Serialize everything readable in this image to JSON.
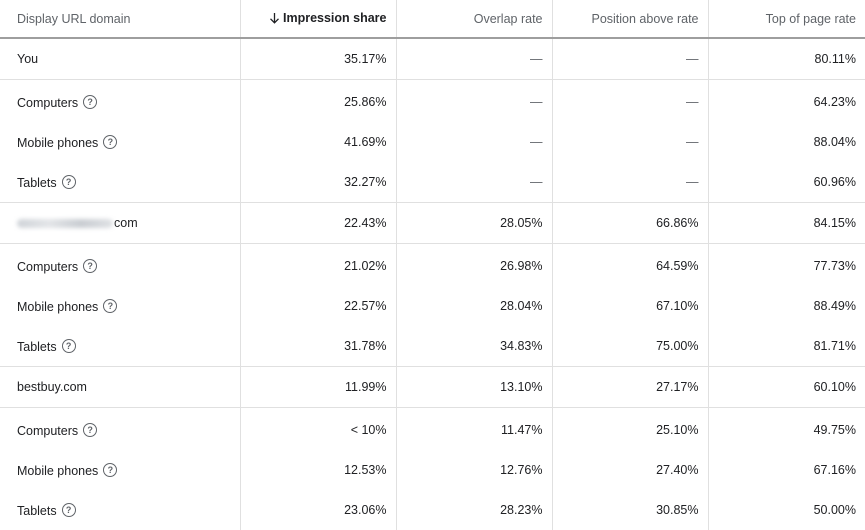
{
  "columns": [
    {
      "label": "Display URL domain",
      "sorted": false
    },
    {
      "label": "Impression share",
      "sorted": true
    },
    {
      "label": "Overlap rate",
      "sorted": false
    },
    {
      "label": "Position above rate",
      "sorted": false
    },
    {
      "label": "Top of page rate",
      "sorted": false
    }
  ],
  "rows": [
    {
      "type": "main",
      "domain": "You",
      "impression_share": "35.17%",
      "overlap_rate": "—",
      "position_above_rate": "—",
      "top_of_page_rate": "80.11%"
    },
    {
      "type": "sub",
      "domain": "Computers",
      "impression_share": "25.86%",
      "overlap_rate": "—",
      "position_above_rate": "—",
      "top_of_page_rate": "64.23%"
    },
    {
      "type": "sub",
      "domain": "Mobile phones",
      "impression_share": "41.69%",
      "overlap_rate": "—",
      "position_above_rate": "—",
      "top_of_page_rate": "88.04%"
    },
    {
      "type": "sub",
      "domain": "Tablets",
      "impression_share": "32.27%",
      "overlap_rate": "—",
      "position_above_rate": "—",
      "top_of_page_rate": "60.96%"
    },
    {
      "type": "main",
      "domain": "com",
      "blurred_prefix": true,
      "impression_share": "22.43%",
      "overlap_rate": "28.05%",
      "position_above_rate": "66.86%",
      "top_of_page_rate": "84.15%"
    },
    {
      "type": "sub",
      "domain": "Computers",
      "impression_share": "21.02%",
      "overlap_rate": "26.98%",
      "position_above_rate": "64.59%",
      "top_of_page_rate": "77.73%"
    },
    {
      "type": "sub",
      "domain": "Mobile phones",
      "impression_share": "22.57%",
      "overlap_rate": "28.04%",
      "position_above_rate": "67.10%",
      "top_of_page_rate": "88.49%"
    },
    {
      "type": "sub",
      "domain": "Tablets",
      "impression_share": "31.78%",
      "overlap_rate": "34.83%",
      "position_above_rate": "75.00%",
      "top_of_page_rate": "81.71%"
    },
    {
      "type": "main",
      "domain": "bestbuy.com",
      "impression_share": "11.99%",
      "overlap_rate": "13.10%",
      "position_above_rate": "27.17%",
      "top_of_page_rate": "60.10%"
    },
    {
      "type": "sub",
      "domain": "Computers",
      "impression_share": "< 10%",
      "overlap_rate": "11.47%",
      "position_above_rate": "25.10%",
      "top_of_page_rate": "49.75%"
    },
    {
      "type": "sub",
      "domain": "Mobile phones",
      "impression_share": "12.53%",
      "overlap_rate": "12.76%",
      "position_above_rate": "27.40%",
      "top_of_page_rate": "67.16%"
    },
    {
      "type": "sub",
      "domain": "Tablets",
      "impression_share": "23.06%",
      "overlap_rate": "28.23%",
      "position_above_rate": "30.85%",
      "top_of_page_rate": "50.00%"
    }
  ],
  "icons": {
    "sort": "arrow-down-icon",
    "help": "help-circle-icon"
  },
  "colors": {
    "header_text": "#5f6368",
    "text": "#202124",
    "divider": "#e0e0e0",
    "header_rule": "#9e9e9e"
  }
}
